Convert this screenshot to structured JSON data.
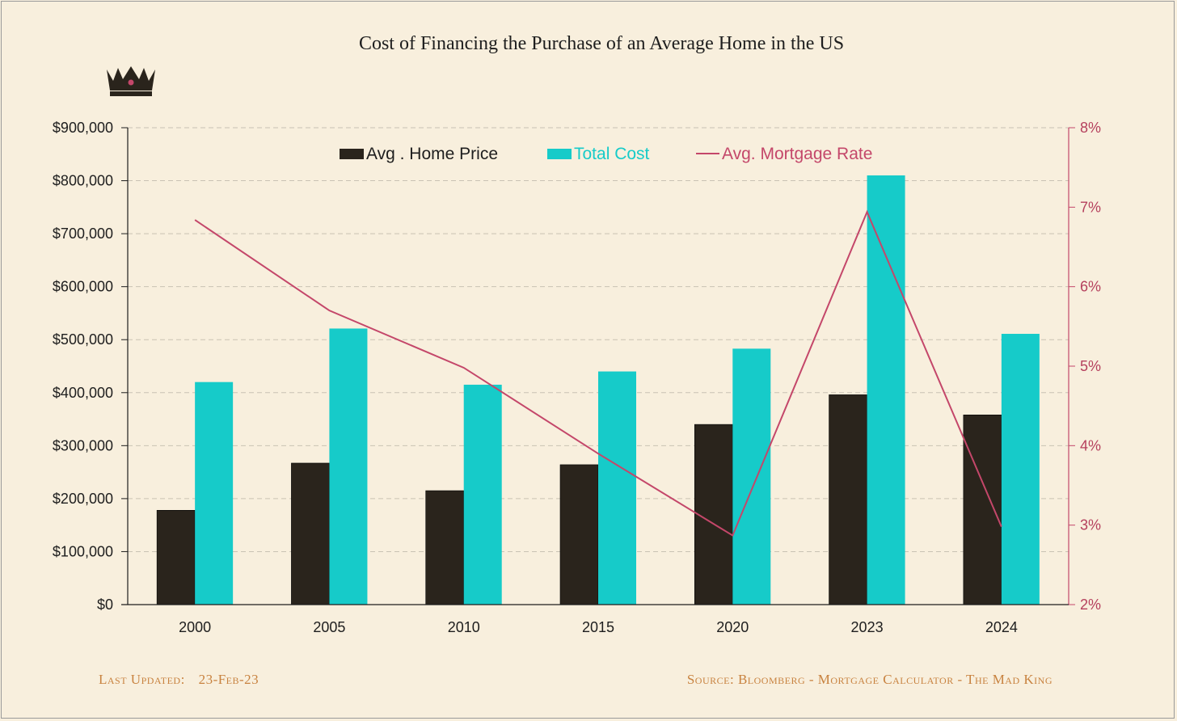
{
  "chart_data": {
    "type": "bar",
    "title": "Cost of Financing the Purchase of an Average Home in the US",
    "categories": [
      "2000",
      "2005",
      "2010",
      "2015",
      "2020",
      "2023",
      "2024"
    ],
    "series": [
      {
        "name": "Avg . Home Price",
        "axis": "left",
        "type": "bar",
        "color": "#2a241c",
        "values": [
          178000,
          267000,
          215000,
          264000,
          340000,
          396000,
          358000
        ]
      },
      {
        "name": "Total Cost",
        "axis": "left",
        "type": "bar",
        "color": "#16cbc9",
        "values": [
          420000,
          521000,
          415000,
          440000,
          483000,
          810000,
          511000
        ]
      },
      {
        "name": "Avg. Mortgage Rate",
        "axis": "right",
        "type": "line",
        "color": "#c4476a",
        "values": [
          6.84,
          5.7,
          4.98,
          3.9,
          2.87,
          6.94,
          2.98
        ]
      }
    ],
    "y_left": {
      "ylim": [
        0,
        900000
      ],
      "ticks": [
        0,
        100000,
        200000,
        300000,
        400000,
        500000,
        600000,
        700000,
        800000,
        900000
      ],
      "tick_labels": [
        "$0",
        "$100,000",
        "$200,000",
        "$300,000",
        "$400,000",
        "$500,000",
        "$600,000",
        "$700,000",
        "$800,000",
        "$900,000"
      ]
    },
    "y_right": {
      "ylim": [
        2,
        8
      ],
      "ticks": [
        2,
        3,
        4,
        5,
        6,
        7,
        8
      ],
      "tick_labels": [
        "2%",
        "3%",
        "4%",
        "5%",
        "6%",
        "7%",
        "8%"
      ]
    },
    "grid": true,
    "legend_position": "top"
  },
  "decor": {
    "logo": "crown-icon"
  },
  "footer": {
    "updated_label": "Last Updated:",
    "updated_value": "23-Feb-23",
    "source": "Source: Bloomberg - Mortgage Calculator  - The Mad King"
  },
  "colors": {
    "background": "#f8efdd",
    "home_price": "#2a241c",
    "total_cost": "#16cbc9",
    "mortgage_rate": "#c4476a",
    "footer_text": "#c8823f"
  }
}
